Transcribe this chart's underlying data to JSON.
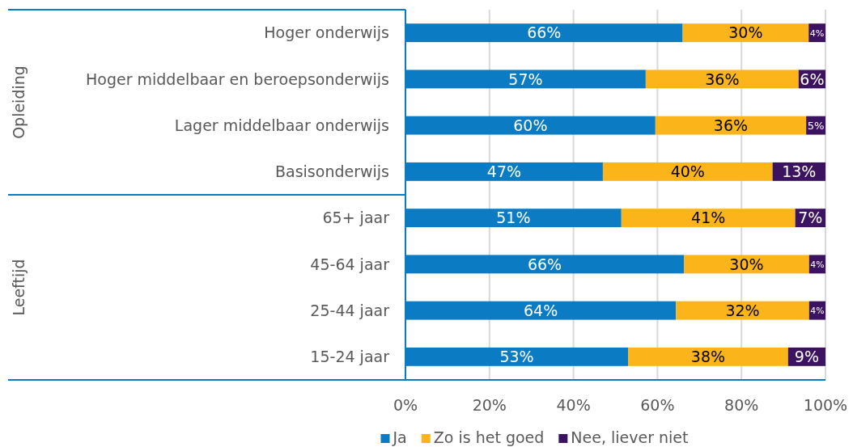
{
  "chart_data": {
    "type": "bar",
    "orientation": "horizontal",
    "stacked": true,
    "categories": [
      "Hoger onderwijs",
      "Hoger middelbaar en beroepsonderwijs",
      "Lager middelbaar onderwijs",
      "Basisonderwijs",
      "65+ jaar",
      "45-64 jaar",
      "25-44 jaar",
      "15-24 jaar"
    ],
    "series": [
      {
        "name": "Ja",
        "color": "#0b7cc4",
        "values": [
          66,
          57.2,
          59.5,
          47.0,
          51.4,
          66.3,
          64.4,
          53.0
        ],
        "value_labels": [
          "66%",
          "57%",
          "60%",
          "47%",
          "51%",
          "66%",
          "64%",
          "53%"
        ]
      },
      {
        "name": "Zo is het goed",
        "color": "#fbb41a",
        "values": [
          30,
          36.4,
          35.9,
          40.4,
          41.4,
          29.8,
          31.7,
          38.1
        ],
        "value_labels": [
          "30%",
          "36%",
          "36%",
          "40%",
          "41%",
          "30%",
          "32%",
          "38%"
        ]
      },
      {
        "name": "Nee, liever niet",
        "color": "#3c1361",
        "values": [
          4,
          6.4,
          4.6,
          12.6,
          7.2,
          3.9,
          3.9,
          8.9
        ],
        "value_labels": [
          "4%",
          "6%",
          "5%",
          "13%",
          "7%",
          "4%",
          "4%",
          "9%"
        ]
      }
    ],
    "xlim": [
      0,
      100
    ],
    "xticks": [
      {
        "value": 0,
        "label": "0%"
      },
      {
        "value": 20,
        "label": "20%"
      },
      {
        "value": 40,
        "label": "40%"
      },
      {
        "value": 60,
        "label": "60%"
      },
      {
        "value": 80,
        "label": "80%"
      },
      {
        "value": 100,
        "label": "100%"
      }
    ],
    "grid": "x",
    "legend": "bottom",
    "annotations": [
      "Opleiding",
      "Leeftijd"
    ]
  }
}
